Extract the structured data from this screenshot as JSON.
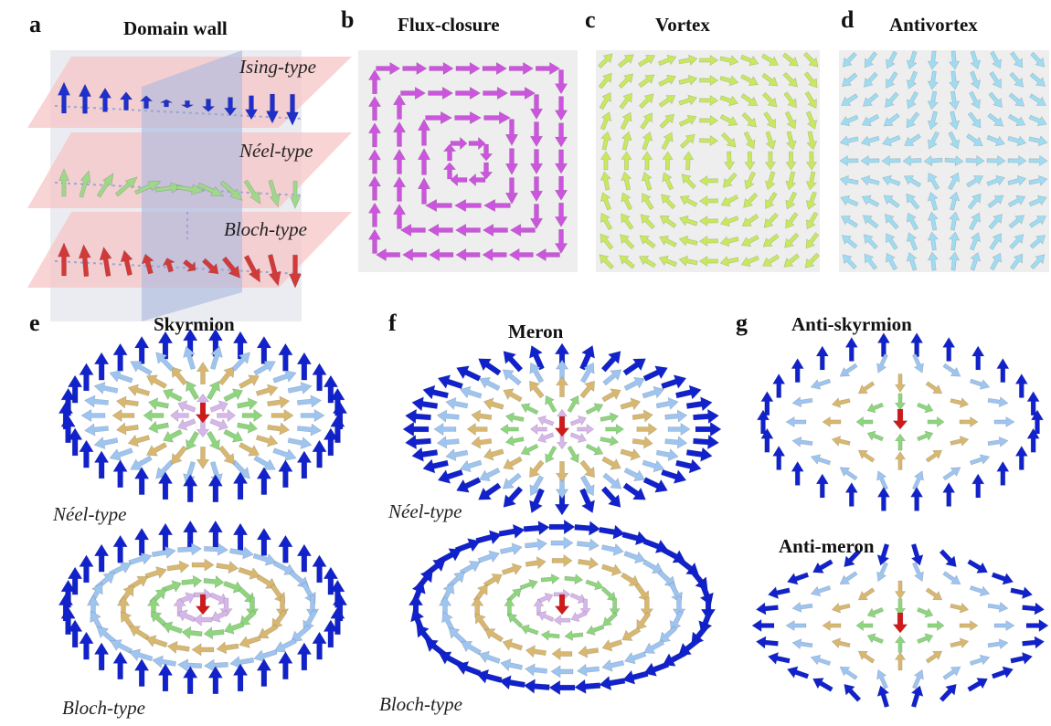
{
  "panels": {
    "a": {
      "label": "a",
      "title": "Domain wall",
      "types": [
        "Ising-type",
        "Néel-type",
        "Bloch-type"
      ]
    },
    "b": {
      "label": "b",
      "title": "Flux-closure"
    },
    "c": {
      "label": "c",
      "title": "Vortex"
    },
    "d": {
      "label": "d",
      "title": "Antivortex"
    },
    "e": {
      "label": "e",
      "title": "Skyrmion",
      "types": [
        "Néel-type",
        "Bloch-type"
      ]
    },
    "f": {
      "label": "f",
      "title": "Meron",
      "types": [
        "Néel-type",
        "Bloch-type"
      ]
    },
    "g": {
      "label": "g",
      "title": "Anti-skyrmion",
      "subtitle": "Anti-meron"
    }
  },
  "colors": {
    "ising": "#1f2fcc",
    "neel_wall": "#9fd88a",
    "bloch_wall": "#d23a3a",
    "flux": "#cc55dd",
    "vortex": "#c8e860",
    "antivortex": "#9fdcf2",
    "ring_outer": "#1122cc",
    "ring_light": "#9ec4f0",
    "ring_tan": "#d8b870",
    "ring_green": "#8ed57e",
    "ring_violet": "#d7b6ea",
    "core": "#d01a1a",
    "wall_plane": "#f6c4c4",
    "wall_vplane": "#b7c3e0"
  }
}
